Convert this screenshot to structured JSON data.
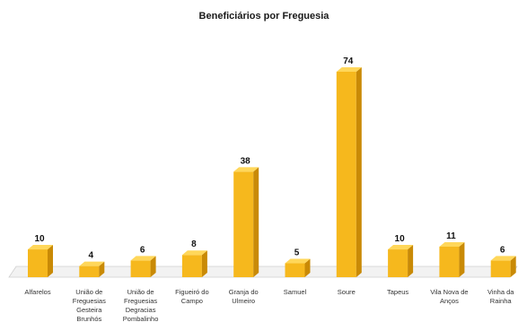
{
  "chart_data": {
    "type": "bar",
    "title": "Beneficiários por Freguesia",
    "categories": [
      "Alfarelos",
      "União de Freguesias Gesteira Brunhós",
      "União de Freguesias Degracias Pombalinho",
      "Figueiró do Campo",
      "Granja do Ulmeiro",
      "Samuel",
      "Soure",
      "Tapeus",
      "Vila Nova de Anços",
      "Vinha da Rainha"
    ],
    "category_lines": [
      [
        "Alfarelos"
      ],
      [
        "União de",
        "Freguesias",
        "Gesteira",
        "Brunhós"
      ],
      [
        "União de",
        "Freguesias",
        "Degracias",
        "Pombalinho"
      ],
      [
        "Figueiró do",
        "Campo"
      ],
      [
        "Granja do",
        "Ulmeiro"
      ],
      [
        "Samuel"
      ],
      [
        "Soure"
      ],
      [
        "Tapeus"
      ],
      [
        "Vila Nova de",
        "Anços"
      ],
      [
        "Vinha da",
        "Rainha"
      ]
    ],
    "values": [
      10,
      4,
      6,
      8,
      38,
      5,
      74,
      10,
      11,
      6
    ],
    "data_labels": [
      "10",
      "4",
      "6",
      "8",
      "38",
      "5",
      "74",
      "10",
      "11",
      "6"
    ],
    "ylim": [
      0,
      80
    ],
    "grid": false,
    "legend": "none",
    "colors": {
      "bar_front": "#f6b81d",
      "bar_side": "#c98a06",
      "bar_top": "#ffd75a",
      "floor": "#f2f2f2",
      "floor_edge": "#cfcfcf"
    }
  }
}
